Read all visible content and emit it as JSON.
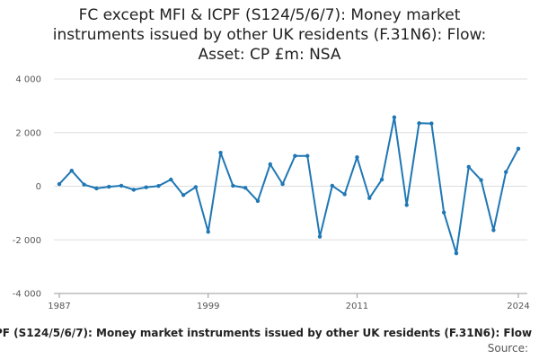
{
  "title_lines": [
    "FC except MFI & ICPF (S124/5/6/7): Money market",
    "instruments issued by other UK residents (F.31N6): Flow:",
    "Asset: CP £m: NSA"
  ],
  "series_caption": "PF (S124/5/6/7): Money market instruments issued by other UK residents (F.31N6): Flow",
  "source_label": "Source:",
  "colors": {
    "line": "#1f77b4",
    "grid": "#dddddd",
    "axis": "#999999"
  },
  "chart_data": {
    "type": "line",
    "title": "FC except MFI & ICPF (S124/5/6/7): Money market instruments issued by other UK residents (F.31N6): Flow: Asset: CP £m: NSA",
    "x": [
      1987,
      1988,
      1989,
      1990,
      1991,
      1992,
      1993,
      1994,
      1995,
      1996,
      1997,
      1998,
      1999,
      2000,
      2001,
      2002,
      2003,
      2004,
      2005,
      2006,
      2007,
      2008,
      2009,
      2010,
      2011,
      2012,
      2013,
      2014,
      2015,
      2016,
      2017,
      2018,
      2019,
      2020,
      2021,
      2022,
      2023,
      2024
    ],
    "series": [
      {
        "values": [
          80,
          580,
          60,
          -80,
          -20,
          20,
          -130,
          -40,
          10,
          250,
          -330,
          -30,
          -1700,
          1250,
          20,
          -60,
          -550,
          820,
          80,
          1130,
          1130,
          -1880,
          20,
          -300,
          1080,
          -440,
          250,
          2570,
          -700,
          2350,
          2340,
          -980,
          -2500,
          720,
          230,
          -1640,
          530,
          1400
        ]
      }
    ],
    "xlabel": "",
    "ylabel": "",
    "ylim": [
      -4000,
      4000
    ],
    "xlim": [
      1987,
      2024
    ],
    "y_ticks": [
      -4000,
      -2000,
      0,
      2000,
      4000
    ],
    "y_tick_labels": [
      "-4 000",
      "-2 000",
      "0",
      "2 000",
      "4 000"
    ],
    "x_ticks": [
      1987,
      1999,
      2011,
      2024
    ],
    "x_tick_labels": [
      "1987",
      "1999",
      "2011",
      "2024"
    ],
    "grid": true,
    "legend": "none"
  }
}
